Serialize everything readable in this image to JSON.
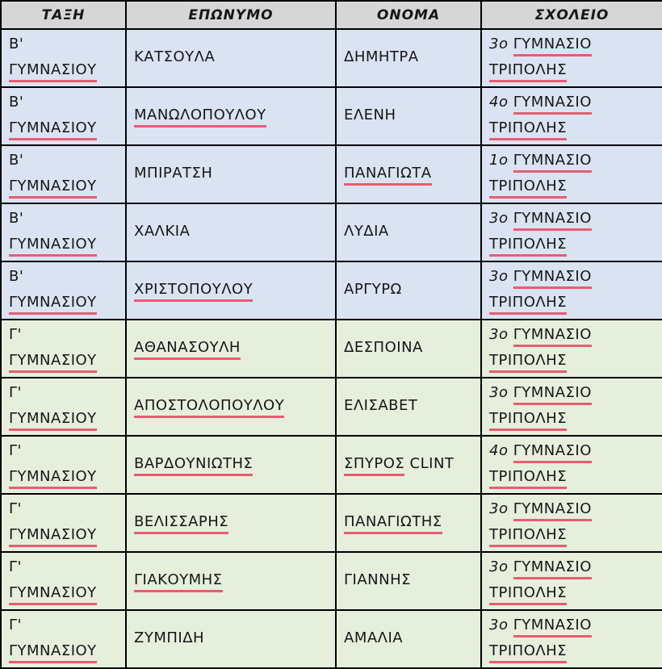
{
  "colors": {
    "header_bg": "#d6d6d6",
    "blue_row_bg": "#dae3f1",
    "green_row_bg": "#e6efdc",
    "underline": "#ea5b72",
    "border": "#000000"
  },
  "table": {
    "headers": [
      {
        "key": "taxi",
        "label": "ΤΑΞΗ"
      },
      {
        "key": "eponymo",
        "label": "ΕΠΩΝΥΜΟ"
      },
      {
        "key": "onoma",
        "label": "ΟΝΟΜΑ"
      },
      {
        "key": "sxoleio",
        "label": "ΣΧΟΛΕΙΟ"
      }
    ],
    "rows": [
      {
        "group": "blue",
        "taxi": [
          [
            {
              "t": "Β'"
            }
          ],
          [
            {
              "t": "ΓΥΜΝΑΣΙΟΥ",
              "u": true
            }
          ]
        ],
        "eponymo": [
          [
            {
              "t": "ΚΑΤΣΟΥΛΑ"
            }
          ]
        ],
        "onoma": [
          [
            {
              "t": "ΔΗΜΗΤΡΑ"
            }
          ]
        ],
        "sxoleio": [
          [
            {
              "t": "3ο",
              "i": true
            },
            {
              "t": "ΓΥΜΝΑΣΙΟ",
              "u": true
            }
          ],
          [
            {
              "t": "ΤΡΙΠΟΛΗΣ",
              "u": true
            }
          ]
        ]
      },
      {
        "group": "blue",
        "taxi": [
          [
            {
              "t": "Β'"
            }
          ],
          [
            {
              "t": "ΓΥΜΝΑΣΙΟΥ",
              "u": true
            }
          ]
        ],
        "eponymo": [
          [
            {
              "t": "ΜΑΝΩΛΟΠΟΥΛΟΥ",
              "u": true
            }
          ]
        ],
        "onoma": [
          [
            {
              "t": "ΕΛΕΝΗ"
            }
          ]
        ],
        "sxoleio": [
          [
            {
              "t": "4ο",
              "i": true
            },
            {
              "t": "ΓΥΜΝΑΣΙΟ",
              "u": true
            }
          ],
          [
            {
              "t": "ΤΡΙΠΟΛΗΣ",
              "u": true
            }
          ]
        ]
      },
      {
        "group": "blue",
        "taxi": [
          [
            {
              "t": "Β'"
            }
          ],
          [
            {
              "t": "ΓΥΜΝΑΣΙΟΥ",
              "u": true
            }
          ]
        ],
        "eponymo": [
          [
            {
              "t": "ΜΠΙΡΑΤΣΗ"
            }
          ]
        ],
        "onoma": [
          [
            {
              "t": "ΠΑΝΑΓΙΩΤΑ",
              "u": true
            }
          ]
        ],
        "sxoleio": [
          [
            {
              "t": "1ο",
              "i": true
            },
            {
              "t": "ΓΥΜΝΑΣΙΟ",
              "u": true
            }
          ],
          [
            {
              "t": "ΤΡΙΠΟΛΗΣ",
              "u": true
            }
          ]
        ]
      },
      {
        "group": "blue",
        "taxi": [
          [
            {
              "t": "Β'"
            }
          ],
          [
            {
              "t": "ΓΥΜΝΑΣΙΟΥ",
              "u": true
            }
          ]
        ],
        "eponymo": [
          [
            {
              "t": "ΧΑΛΚΙΑ"
            }
          ]
        ],
        "onoma": [
          [
            {
              "t": "ΛΥΔΙΑ"
            }
          ]
        ],
        "sxoleio": [
          [
            {
              "t": "3ο",
              "i": true
            },
            {
              "t": "ΓΥΜΝΑΣΙΟ",
              "u": true
            }
          ],
          [
            {
              "t": "ΤΡΙΠΟΛΗΣ",
              "u": true
            }
          ]
        ]
      },
      {
        "group": "blue",
        "taxi": [
          [
            {
              "t": "Β'"
            }
          ],
          [
            {
              "t": "ΓΥΜΝΑΣΙΟΥ",
              "u": true
            }
          ]
        ],
        "eponymo": [
          [
            {
              "t": "ΧΡΙΣΤΟΠΟΥΛΟΥ",
              "u": true
            }
          ]
        ],
        "onoma": [
          [
            {
              "t": "ΑΡΓΥΡΩ"
            }
          ]
        ],
        "sxoleio": [
          [
            {
              "t": "3ο",
              "i": true
            },
            {
              "t": "ΓΥΜΝΑΣΙΟ",
              "u": true
            }
          ],
          [
            {
              "t": "ΤΡΙΠΟΛΗΣ",
              "u": true
            }
          ]
        ]
      },
      {
        "group": "green",
        "taxi": [
          [
            {
              "t": "Γ'"
            }
          ],
          [
            {
              "t": "ΓΥΜΝΑΣΙΟΥ",
              "u": true
            }
          ]
        ],
        "eponymo": [
          [
            {
              "t": "ΑΘΑΝΑΣΟΥΛΗ",
              "u": true
            }
          ]
        ],
        "onoma": [
          [
            {
              "t": "ΔΕΣΠΟΙΝΑ"
            }
          ]
        ],
        "sxoleio": [
          [
            {
              "t": "3ο",
              "i": true
            },
            {
              "t": "ΓΥΜΝΑΣΙΟ",
              "u": true
            }
          ],
          [
            {
              "t": "ΤΡΙΠΟΛΗΣ",
              "u": true
            }
          ]
        ]
      },
      {
        "group": "green",
        "taxi": [
          [
            {
              "t": "Γ'"
            }
          ],
          [
            {
              "t": "ΓΥΜΝΑΣΙΟΥ",
              "u": true
            }
          ]
        ],
        "eponymo": [
          [
            {
              "t": "ΑΠΟΣΤΟΛΟΠΟΥΛΟΥ",
              "u": true
            }
          ]
        ],
        "onoma": [
          [
            {
              "t": "ΕΛΙΣΑΒΕΤ"
            }
          ]
        ],
        "sxoleio": [
          [
            {
              "t": "3ο",
              "i": true
            },
            {
              "t": "ΓΥΜΝΑΣΙΟ",
              "u": true
            }
          ],
          [
            {
              "t": "ΤΡΙΠΟΛΗΣ",
              "u": true
            }
          ]
        ]
      },
      {
        "group": "green",
        "taxi": [
          [
            {
              "t": "Γ'"
            }
          ],
          [
            {
              "t": "ΓΥΜΝΑΣΙΟΥ",
              "u": true
            }
          ]
        ],
        "eponymo": [
          [
            {
              "t": "ΒΑΡΔΟΥΝΙΩΤΗΣ",
              "u": true
            }
          ]
        ],
        "onoma": [
          [
            {
              "t": "ΣΠΥΡΟΣ",
              "u": true
            },
            {
              "t": "CLINT"
            }
          ]
        ],
        "sxoleio": [
          [
            {
              "t": "4ο",
              "i": true
            },
            {
              "t": "ΓΥΜΝΑΣΙΟ",
              "u": true
            }
          ],
          [
            {
              "t": "ΤΡΙΠΟΛΗΣ",
              "u": true
            }
          ]
        ]
      },
      {
        "group": "green",
        "taxi": [
          [
            {
              "t": "Γ'"
            }
          ],
          [
            {
              "t": "ΓΥΜΝΑΣΙΟΥ",
              "u": true
            }
          ]
        ],
        "eponymo": [
          [
            {
              "t": "ΒΕΛΙΣΣΑΡΗΣ",
              "u": true
            }
          ]
        ],
        "onoma": [
          [
            {
              "t": "ΠΑΝΑΓΙΩΤΗΣ",
              "u": true
            }
          ]
        ],
        "sxoleio": [
          [
            {
              "t": "3ο",
              "i": true
            },
            {
              "t": "ΓΥΜΝΑΣΙΟ",
              "u": true
            }
          ],
          [
            {
              "t": "ΤΡΙΠΟΛΗΣ",
              "u": true
            }
          ]
        ]
      },
      {
        "group": "green",
        "taxi": [
          [
            {
              "t": "Γ'"
            }
          ],
          [
            {
              "t": "ΓΥΜΝΑΣΙΟΥ",
              "u": true
            }
          ]
        ],
        "eponymo": [
          [
            {
              "t": "ΓΙΑΚΟΥΜΗΣ",
              "u": true
            }
          ]
        ],
        "onoma": [
          [
            {
              "t": "ΓΙΑΝΝΗΣ"
            }
          ]
        ],
        "sxoleio": [
          [
            {
              "t": "3ο",
              "i": true
            },
            {
              "t": "ΓΥΜΝΑΣΙΟ",
              "u": true
            }
          ],
          [
            {
              "t": "ΤΡΙΠΟΛΗΣ",
              "u": true
            }
          ]
        ]
      },
      {
        "group": "green",
        "taxi": [
          [
            {
              "t": "Γ'"
            }
          ],
          [
            {
              "t": "ΓΥΜΝΑΣΙΟΥ",
              "u": true
            }
          ]
        ],
        "eponymo": [
          [
            {
              "t": "ΖΥΜΠΙΔΗ"
            }
          ]
        ],
        "onoma": [
          [
            {
              "t": "ΑΜΑΛΙΑ"
            }
          ]
        ],
        "sxoleio": [
          [
            {
              "t": "3ο",
              "i": true
            },
            {
              "t": "ΓΥΜΝΑΣΙΟ",
              "u": true
            }
          ],
          [
            {
              "t": "ΤΡΙΠΟΛΗΣ",
              "u": true
            }
          ]
        ]
      }
    ]
  }
}
